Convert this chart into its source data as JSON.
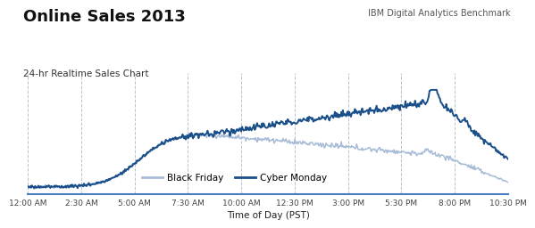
{
  "title": "Online Sales 2013",
  "subtitle": "24-hr Realtime Sales Chart",
  "source_label": "IBM Digital Analytics Benchmark",
  "xlabel": "Time of Day (PST)",
  "xtick_labels": [
    "12:00 AM",
    "2:30 AM",
    "5:00 AM",
    "7:30 AM",
    "10:00 AM",
    "12:30 PM",
    "3:00 PM",
    "5:30 PM",
    "8:00 PM",
    "10:30 PM"
  ],
  "background_color": "#ffffff",
  "cyber_monday_color": "#1a4f8a",
  "black_friday_color": "#a8bcd8",
  "grid_color": "#b0b8c8",
  "axis_color": "#4a7abf",
  "legend_bf": "Black Friday",
  "legend_cm": "Cyber Monday",
  "title_fontsize": 13,
  "subtitle_fontsize": 7.5,
  "source_fontsize": 7,
  "xlabel_fontsize": 7.5,
  "xtick_fontsize": 6.5
}
